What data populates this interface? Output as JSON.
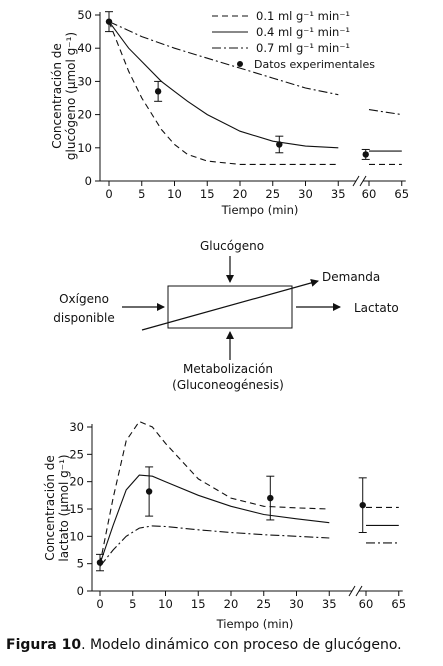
{
  "chart_data": [
    {
      "type": "line",
      "ylabel_line1": "Concentración de",
      "ylabel_line2": "glucógeno (μmol g⁻¹)",
      "xlabel": "Tiempo (min)",
      "xlim": [
        0,
        65
      ],
      "ylim": [
        0,
        50
      ],
      "x_ticks": [
        "0",
        "5",
        "10",
        "15",
        "20",
        "25",
        "30",
        "35",
        "60",
        "65"
      ],
      "y_ticks": [
        "0",
        "10",
        "20",
        "30",
        "40",
        "50"
      ],
      "axis_break": "between 35 and 60",
      "legend_position": "top-right",
      "series": [
        {
          "name": "0.1 ml g⁻¹ min⁻¹",
          "style": "dashed",
          "x": [
            0,
            3,
            5,
            8,
            10,
            12,
            15,
            20,
            25,
            30,
            35,
            60,
            65
          ],
          "y": [
            48,
            33,
            25,
            15.5,
            11,
            8,
            6,
            5,
            5,
            5,
            5,
            5,
            5
          ]
        },
        {
          "name": "0.4 ml g⁻¹ min⁻¹",
          "style": "solid",
          "x": [
            0,
            3,
            5,
            8,
            10,
            12,
            15,
            20,
            25,
            30,
            35,
            60,
            65
          ],
          "y": [
            48,
            40,
            36,
            30,
            27,
            24,
            20,
            15,
            12,
            10.5,
            10,
            9,
            9
          ]
        },
        {
          "name": "0.7 ml g⁻¹ min⁻¹",
          "style": "dashdot",
          "x": [
            0,
            5,
            10,
            15,
            20,
            25,
            30,
            35,
            60,
            65
          ],
          "y": [
            48,
            43.5,
            40,
            37,
            34,
            31,
            28,
            26,
            21.5,
            20
          ]
        },
        {
          "name": "Datos experimentales",
          "style": "points",
          "x": [
            0,
            7.5,
            26,
            59.5
          ],
          "y": [
            48,
            27,
            11,
            8
          ],
          "err": [
            3,
            3,
            2.5,
            1.5
          ]
        }
      ]
    },
    {
      "type": "diagram",
      "inputs": {
        "top": "Glucógeno",
        "left_line1": "Oxígeno",
        "left_line2": "disponible",
        "bottom_line1": "Metabolización",
        "bottom_line2": "(Gluconeogénesis)"
      },
      "outputs": {
        "right": "Lactato",
        "diagonal": "Demanda"
      }
    },
    {
      "type": "line",
      "ylabel_line1": "Concentración de",
      "ylabel_line2": "lactato (μmol g⁻¹)",
      "xlabel": "Tiempo (min)",
      "xlim": [
        0,
        65
      ],
      "ylim": [
        0,
        30
      ],
      "x_ticks": [
        "0",
        "5",
        "10",
        "15",
        "20",
        "25",
        "30",
        "35",
        "60",
        "65"
      ],
      "y_ticks": [
        "0",
        "5",
        "10",
        "15",
        "20",
        "25",
        "30"
      ],
      "axis_break": "between 35 and 60",
      "series": [
        {
          "style": "dashed",
          "x": [
            0,
            2,
            4,
            6,
            8,
            10,
            15,
            20,
            25,
            30,
            35,
            60,
            65
          ],
          "y": [
            5,
            17,
            27.5,
            31,
            30,
            27,
            20.5,
            17,
            15.5,
            15.2,
            15,
            15.3,
            15.3
          ]
        },
        {
          "style": "solid",
          "x": [
            0,
            2,
            4,
            6,
            8,
            10,
            15,
            20,
            25,
            30,
            35,
            60,
            65
          ],
          "y": [
            5,
            12,
            18.5,
            21.2,
            21,
            20,
            17.5,
            15.5,
            14,
            13.2,
            12.5,
            12,
            12
          ]
        },
        {
          "style": "dashdot",
          "x": [
            0,
            2,
            4,
            6,
            8,
            10,
            15,
            20,
            25,
            30,
            35,
            60,
            65
          ],
          "y": [
            4.5,
            7.5,
            10,
            11.5,
            11.9,
            11.8,
            11.2,
            10.7,
            10.3,
            10,
            9.7,
            8.8,
            8.8
          ]
        },
        {
          "style": "points",
          "x": [
            0,
            7.5,
            26,
            59.5
          ],
          "y": [
            5.2,
            18.2,
            17,
            15.7
          ],
          "err": [
            1.5,
            4.5,
            4,
            5
          ]
        }
      ]
    }
  ],
  "caption": {
    "label": "Figura 10",
    "text": ". Modelo dinámico con proceso de glucógeno."
  }
}
